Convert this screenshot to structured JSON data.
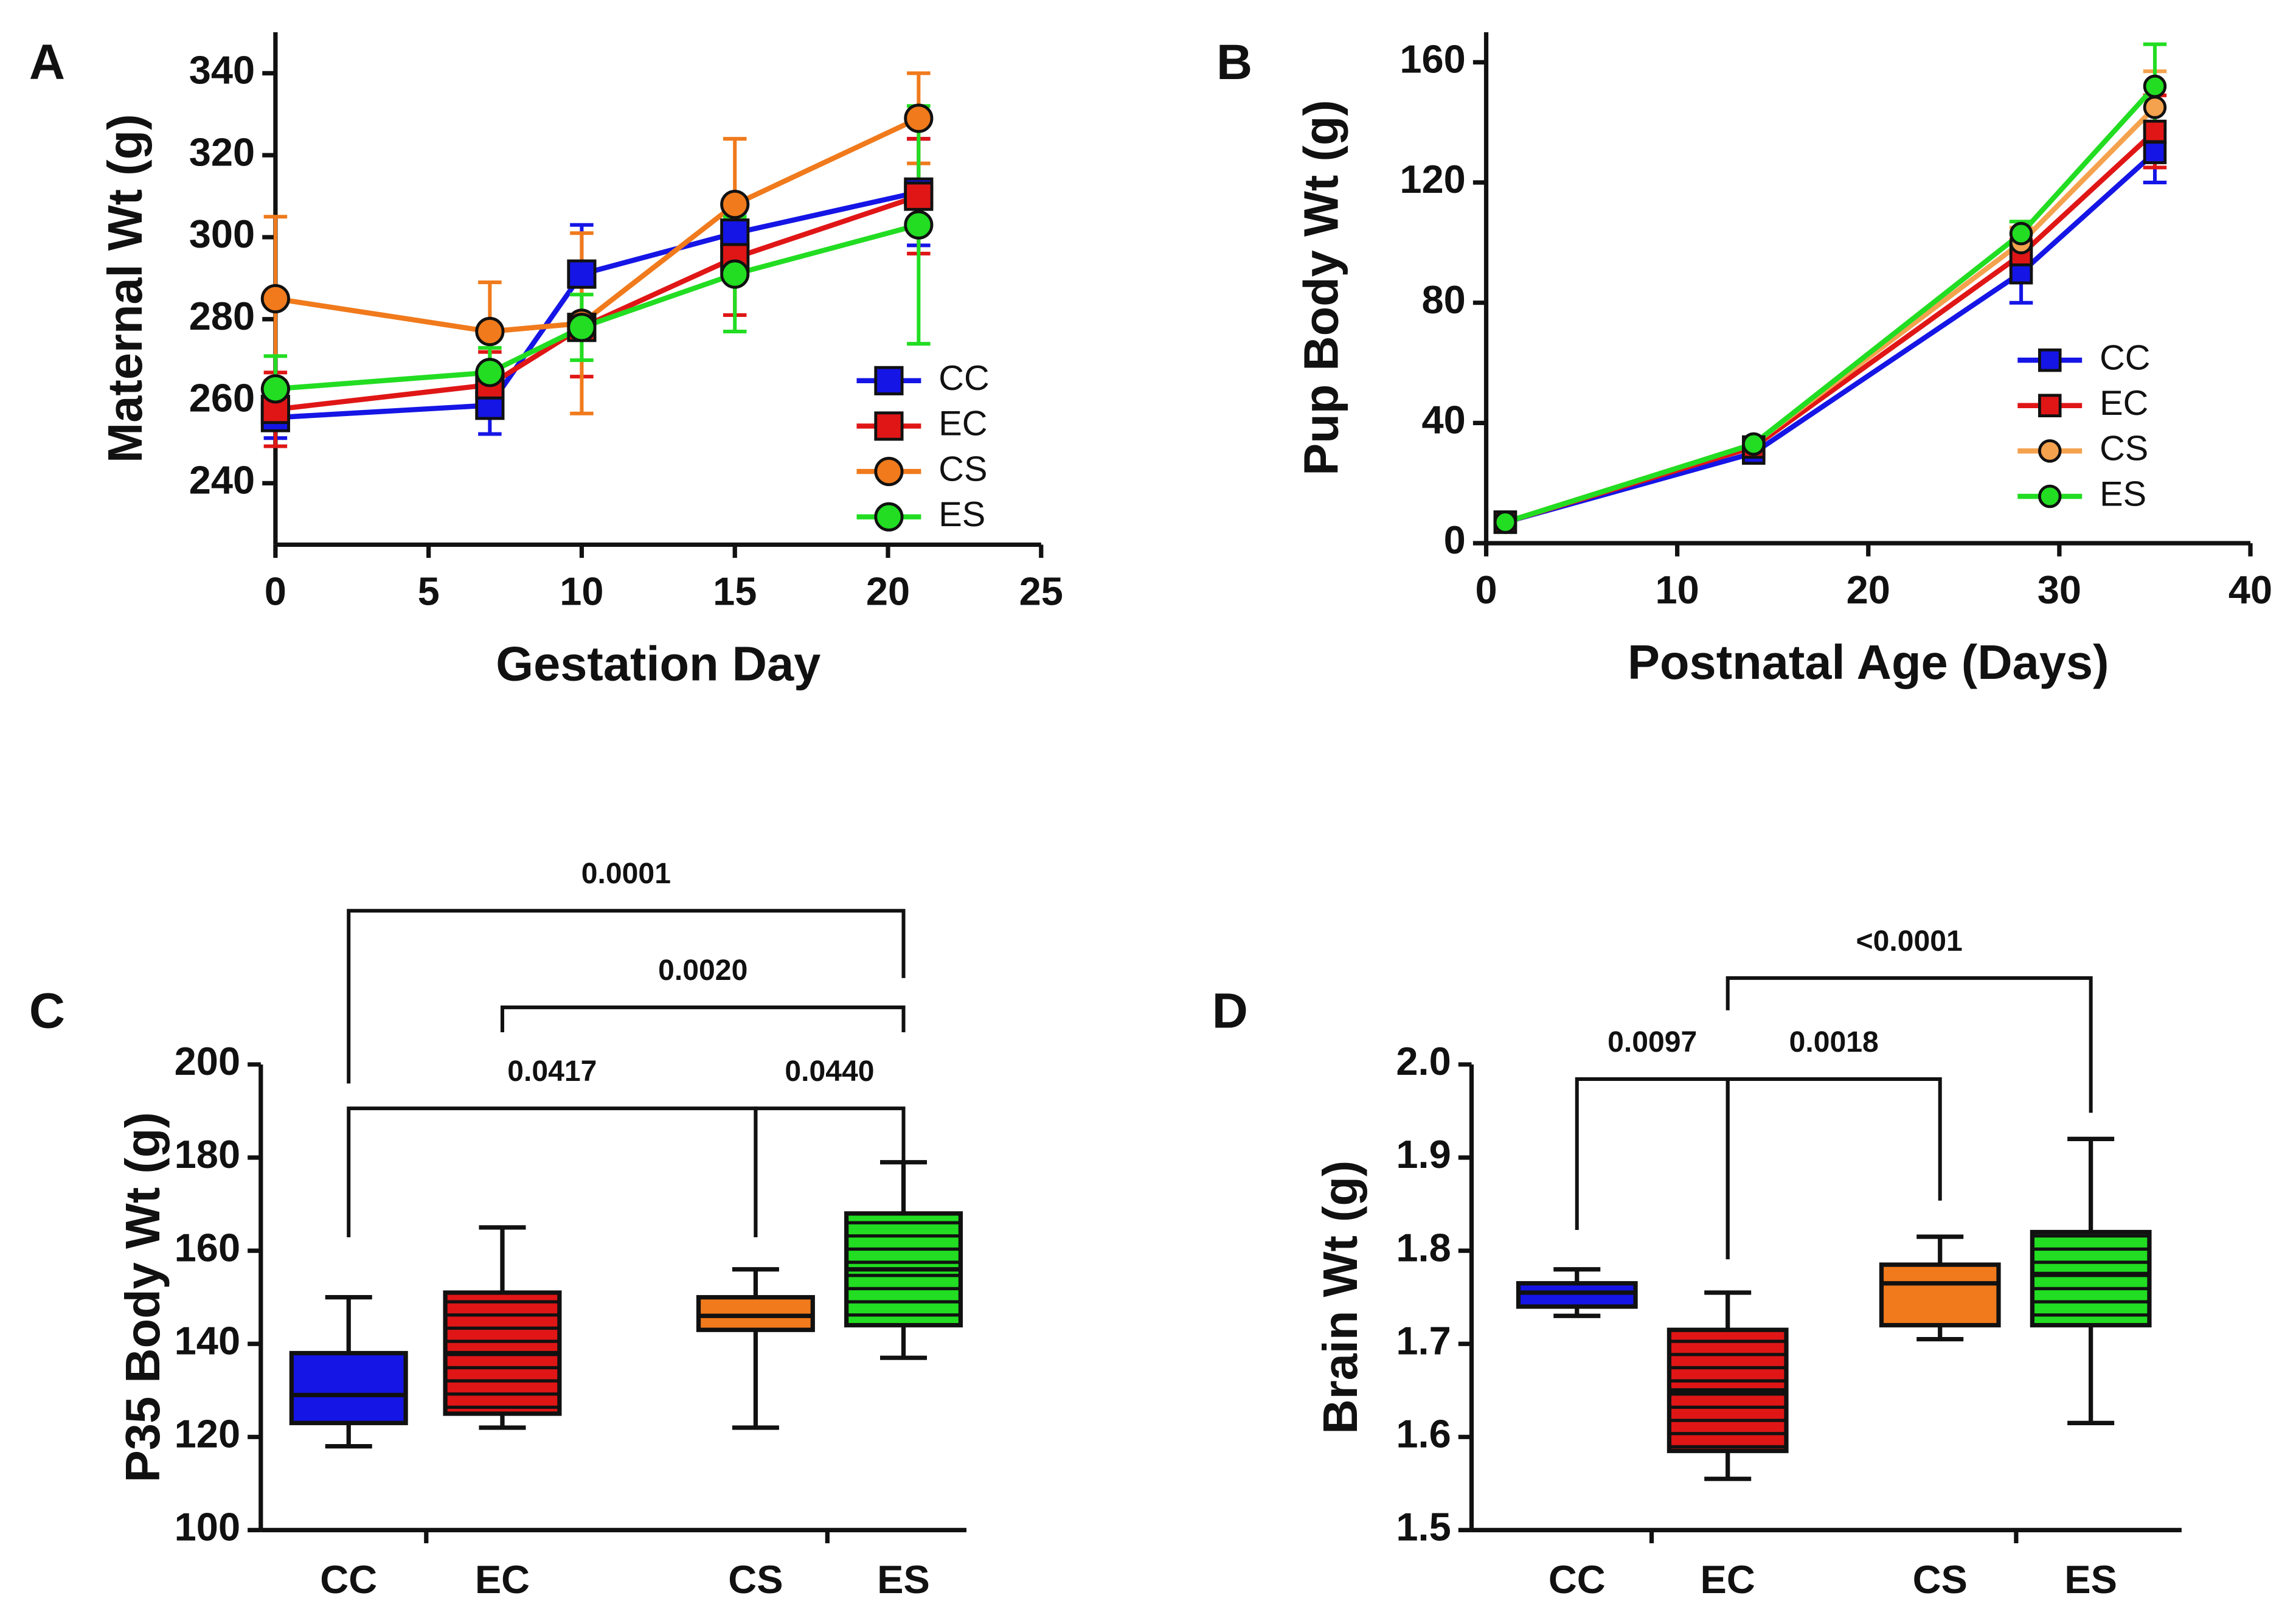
{
  "chart_data": [
    {
      "type": "line",
      "panel": "A",
      "x_label": "Gestation Day",
      "y_label": "Maternal Wt (g)",
      "x": [
        0,
        7,
        10,
        15,
        21
      ],
      "xlim": [
        0,
        25
      ],
      "xticks": [
        0,
        5,
        10,
        15,
        20,
        25
      ],
      "ylim": [
        225,
        350
      ],
      "yticks": [
        240,
        260,
        280,
        300,
        320,
        340
      ],
      "series": [
        {
          "name": "CC",
          "color": "#1515e6",
          "marker": "square",
          "values": [
            256,
            259,
            291,
            301,
            311
          ],
          "errors": [
            5,
            7,
            12,
            5,
            13
          ]
        },
        {
          "name": "EC",
          "color": "#e01616",
          "marker": "square",
          "values": [
            258,
            264,
            278,
            295,
            310
          ],
          "errors": [
            9,
            8,
            12,
            14,
            14
          ]
        },
        {
          "name": "CS",
          "color": "#f07a1c",
          "marker": "circle",
          "values": [
            285,
            277,
            279,
            308,
            329
          ],
          "errors": [
            20,
            12,
            22,
            16,
            11
          ]
        },
        {
          "name": "ES",
          "color": "#22dd22",
          "marker": "circle",
          "values": [
            263,
            267,
            278,
            291,
            303
          ],
          "errors": [
            8,
            6,
            8,
            14,
            29
          ]
        }
      ]
    },
    {
      "type": "line",
      "panel": "B",
      "x_label": "Postnatal Age (Days)",
      "y_label": "Pup Body Wt (g)",
      "x": [
        1,
        14,
        28,
        35
      ],
      "xlim": [
        0,
        40
      ],
      "xticks": [
        0,
        10,
        20,
        30,
        40
      ],
      "ylim": [
        0,
        170
      ],
      "yticks": [
        0,
        40,
        80,
        120,
        160
      ],
      "series": [
        {
          "name": "CC",
          "color": "#1515e6",
          "marker": "square",
          "values": [
            7,
            30,
            90,
            130
          ],
          "errors": [
            1,
            2,
            10,
            10
          ]
        },
        {
          "name": "EC",
          "color": "#e01616",
          "marker": "square",
          "values": [
            7,
            32,
            96,
            137
          ],
          "errors": [
            1,
            2,
            5,
            12
          ]
        },
        {
          "name": "CS",
          "color": "#f4a24e",
          "marker": "circle",
          "values": [
            7,
            33,
            100,
            145
          ],
          "errors": [
            1,
            2,
            5,
            12
          ]
        },
        {
          "name": "ES",
          "color": "#22dd22",
          "marker": "circle",
          "values": [
            7,
            33,
            103,
            152
          ],
          "errors": [
            1,
            2,
            4,
            14
          ]
        }
      ]
    },
    {
      "type": "box",
      "panel": "C",
      "y_label": "P35 Body Wt (g)",
      "categories": [
        "CC",
        "EC",
        "CS",
        "ES"
      ],
      "colors": [
        "#1515e6",
        "#e01616",
        "#f07a1c",
        "#22dd22"
      ],
      "striped": [
        false,
        true,
        false,
        true
      ],
      "min": [
        118,
        122,
        122,
        137
      ],
      "q1": [
        123,
        125,
        143,
        144
      ],
      "median": [
        129,
        138,
        146,
        156
      ],
      "q3": [
        138,
        151,
        150,
        168
      ],
      "max": [
        150,
        165,
        156,
        179
      ],
      "ylim": [
        100,
        200
      ],
      "yticks": [
        100,
        120,
        140,
        160,
        180,
        200
      ],
      "comparisons": [
        {
          "label": "0.0001",
          "between": [
            "CC",
            "ES"
          ]
        },
        {
          "label": "0.0020",
          "between": [
            "EC",
            "ES"
          ]
        },
        {
          "label": "0.0417",
          "between": [
            "CC",
            "CS"
          ]
        },
        {
          "label": "0.0440",
          "between": [
            "CS",
            "ES"
          ]
        }
      ]
    },
    {
      "type": "box",
      "panel": "D",
      "y_label": "Brain Wt (g)",
      "categories": [
        "CC",
        "EC",
        "CS",
        "ES"
      ],
      "colors": [
        "#1515e6",
        "#e01616",
        "#f07a1c",
        "#22dd22"
      ],
      "striped": [
        false,
        true,
        false,
        true
      ],
      "min": [
        1.73,
        1.555,
        1.705,
        1.615
      ],
      "q1": [
        1.74,
        1.585,
        1.72,
        1.72
      ],
      "median": [
        1.755,
        1.65,
        1.765,
        1.775
      ],
      "q3": [
        1.765,
        1.715,
        1.785,
        1.82
      ],
      "max": [
        1.78,
        1.755,
        1.815,
        1.92
      ],
      "ylim": [
        1.5,
        2.0
      ],
      "yticks": [
        1.5,
        1.6,
        1.7,
        1.8,
        1.9,
        {
          "value": 2,
          "label": "2.0"
        }
      ],
      "comparisons": [
        {
          "label": "0.0097",
          "between": [
            "CC",
            "EC"
          ]
        },
        {
          "label": "0.0018",
          "between": [
            "EC",
            "CS"
          ]
        },
        {
          "label": "<0.0001",
          "between": [
            "EC",
            "ES"
          ]
        }
      ]
    }
  ]
}
